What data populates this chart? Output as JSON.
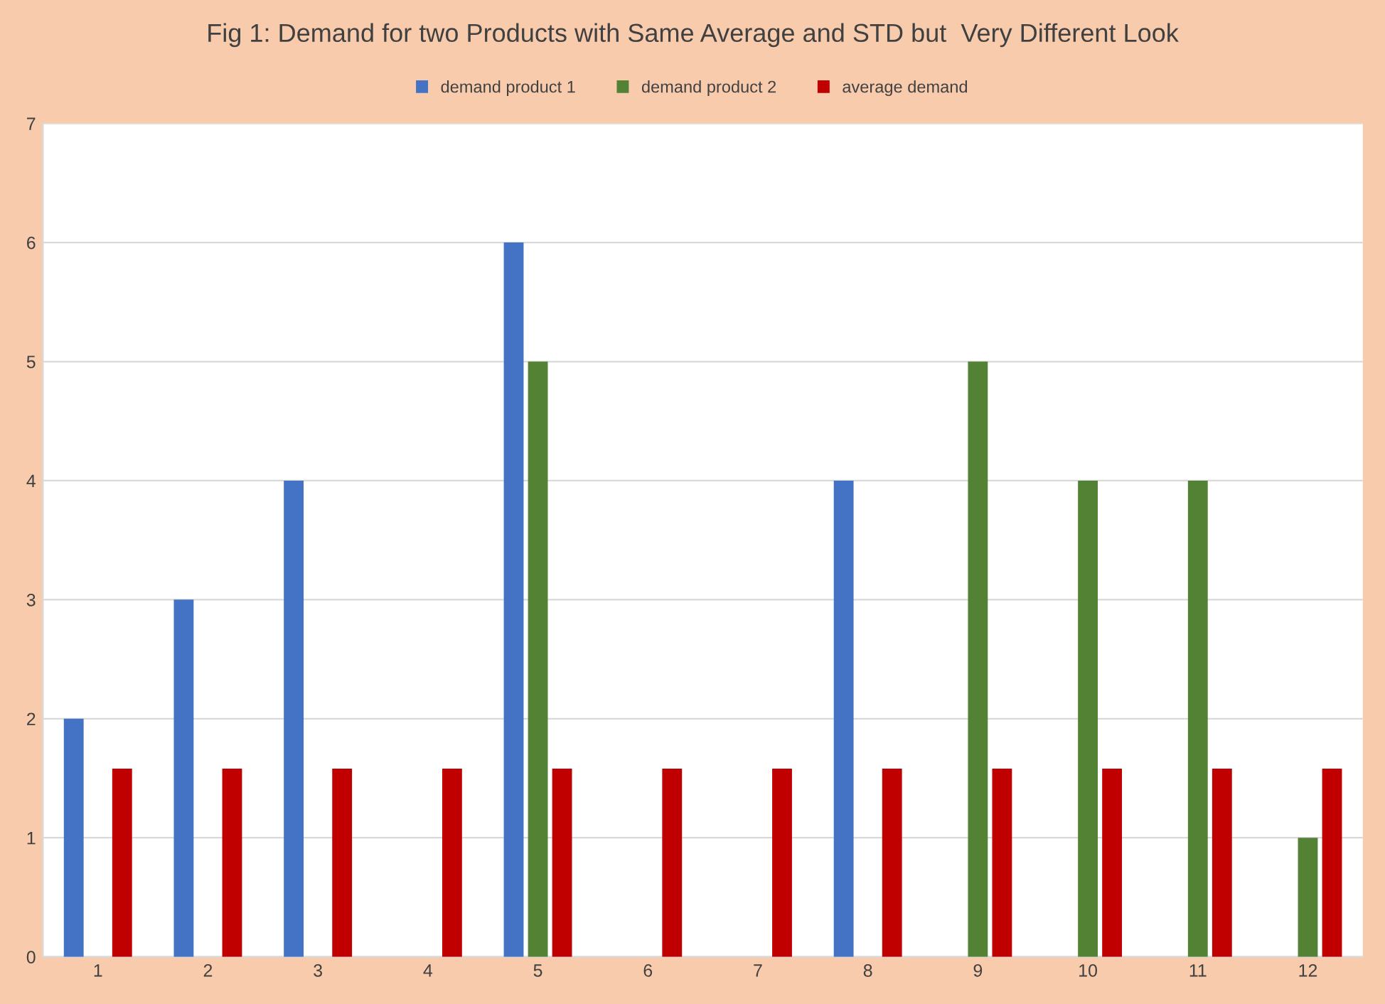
{
  "chart_data": {
    "type": "bar",
    "title": "Fig 1: Demand for two Products with Same Average and STD but  Very Different Look",
    "categories": [
      "1",
      "2",
      "3",
      "4",
      "5",
      "6",
      "7",
      "8",
      "9",
      "10",
      "11",
      "12"
    ],
    "series": [
      {
        "name": "demand product 1",
        "color": "#4472c4",
        "values": [
          2,
          3,
          4,
          null,
          6,
          null,
          null,
          4,
          null,
          null,
          null,
          null
        ]
      },
      {
        "name": "demand product 2",
        "color": "#548235",
        "values": [
          null,
          null,
          null,
          null,
          5,
          null,
          null,
          null,
          5,
          4,
          4,
          1
        ]
      },
      {
        "name": "average demand",
        "color": "#c00000",
        "values": [
          1.58,
          1.58,
          1.58,
          1.58,
          1.58,
          1.58,
          1.58,
          1.58,
          1.58,
          1.58,
          1.58,
          1.58
        ]
      }
    ],
    "ylim": [
      0,
      7
    ],
    "yticks": [
      0,
      1,
      2,
      3,
      4,
      5,
      6,
      7
    ],
    "grid": "y",
    "legend": "top"
  }
}
